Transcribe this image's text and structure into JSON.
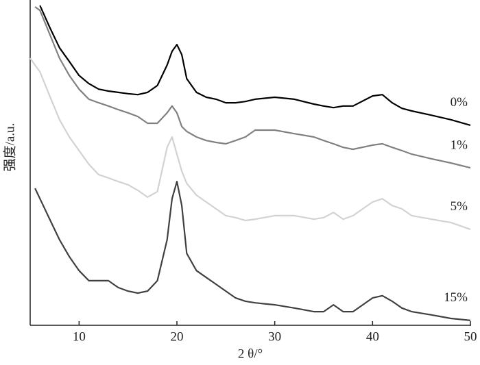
{
  "chart_data": {
    "type": "line",
    "x_label": "2 θ/°",
    "y_label": "强度/a.u.",
    "x": [
      5,
      5.5,
      6,
      7,
      8,
      9,
      10,
      11,
      12,
      13,
      14,
      15,
      16,
      17,
      18,
      19,
      19.5,
      20,
      20.5,
      21,
      22,
      23,
      24,
      25,
      26,
      27,
      28,
      30,
      32,
      34,
      35,
      36,
      37,
      38,
      40,
      41,
      42,
      43,
      44,
      46,
      48,
      50
    ],
    "series": [
      {
        "name": "0%",
        "color": "#000000",
        "values": [
          null,
          null,
          98.3,
          91.6,
          85.3,
          81.1,
          76.8,
          74.3,
          72.6,
          72,
          71.6,
          71.2,
          70.9,
          71.6,
          73.7,
          80,
          84.2,
          86.3,
          83.2,
          75.8,
          71.6,
          70.1,
          69.5,
          68.4,
          68.4,
          68.8,
          69.5,
          70.1,
          69.5,
          68,
          67.4,
          66.9,
          67.4,
          67.4,
          70.5,
          70.9,
          68.4,
          66.7,
          65.9,
          64.6,
          63.2,
          61.5
        ]
      },
      {
        "name": "1%",
        "color": "#808080",
        "values": [
          null,
          97.9,
          96.8,
          89.5,
          82.1,
          76.8,
          72.6,
          69.5,
          68.4,
          67.4,
          66.3,
          65.3,
          64.2,
          62.1,
          62.1,
          65.3,
          67.4,
          65.3,
          61.1,
          59.6,
          57.9,
          56.8,
          56.2,
          55.8,
          56.8,
          57.9,
          60,
          60,
          58.9,
          57.9,
          56.8,
          55.8,
          54.7,
          54.1,
          55.4,
          55.8,
          54.7,
          53.7,
          52.6,
          51.2,
          49.9,
          48.4
        ]
      },
      {
        "name": "5%",
        "color": "#d2d2d2",
        "values": [
          82.1,
          80,
          77.9,
          70.5,
          63.2,
          57.9,
          53.7,
          49.5,
          46.3,
          45.3,
          44.2,
          43.2,
          41.5,
          39.4,
          41.1,
          54.7,
          57.9,
          52.6,
          47.4,
          43.6,
          40,
          37.9,
          35.8,
          33.7,
          33.1,
          32.2,
          32.6,
          33.7,
          33.7,
          32.6,
          33.1,
          34.7,
          32.6,
          33.7,
          37.9,
          38.9,
          36.8,
          35.8,
          33.7,
          32.6,
          31.6,
          29.5
        ]
      },
      {
        "name": "15%",
        "color": "#404040",
        "values": [
          null,
          42.1,
          38.9,
          32.6,
          26.3,
          21.1,
          16.8,
          13.7,
          13.7,
          13.7,
          11.6,
          10.5,
          9.9,
          10.5,
          13.7,
          26.3,
          38.9,
          44.2,
          36.8,
          22.1,
          16.8,
          14.7,
          12.6,
          10.5,
          8.4,
          7.4,
          6.9,
          6.3,
          5.3,
          4.2,
          4.2,
          6.3,
          4.2,
          4.2,
          8.4,
          9.1,
          7.4,
          5.3,
          4.2,
          3.2,
          2.1,
          1.5
        ]
      }
    ],
    "xlim": [
      5,
      50
    ],
    "xticks": [
      10,
      20,
      30,
      40,
      50
    ],
    "ylim": [
      0,
      100
    ],
    "grid": false
  }
}
